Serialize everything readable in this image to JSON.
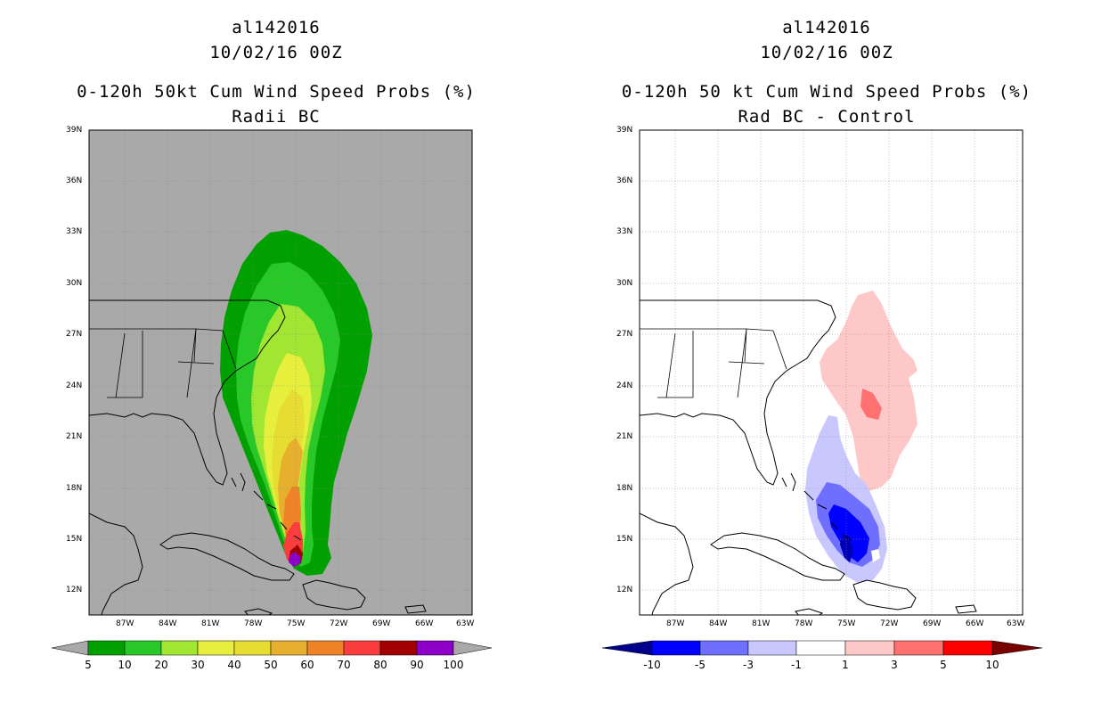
{
  "left_panel": {
    "line1": "al142016",
    "line2": "10/02/16 00Z",
    "line3": "0-120h 50kt Cum Wind Speed Probs (%)",
    "line4": "Radii BC"
  },
  "right_panel": {
    "line1": "al142016",
    "line2": "10/02/16 00Z",
    "line3": "0-120h 50 kt Cum Wind Speed Probs (%)",
    "line4": "Rad BC - Control"
  },
  "lat_labels": [
    "39N",
    "36N",
    "33N",
    "30N",
    "27N",
    "24N",
    "21N",
    "18N",
    "15N",
    "12N"
  ],
  "lon_labels": [
    "87W",
    "84W",
    "81W",
    "78W",
    "75W",
    "72W",
    "69W",
    "66W",
    "63W"
  ],
  "colors": {
    "land_bg": "#a9a9a9",
    "prob_5": "#00a000",
    "prob_10": "#28c828",
    "prob_20": "#a0e632",
    "prob_30": "#e6f03c",
    "prob_40": "#e6dc32",
    "prob_50": "#e6af2d",
    "prob_60": "#f08228",
    "prob_70": "#fa3c3c",
    "prob_80": "#a00000",
    "prob_90": "#8c00c8",
    "diff_m10": "#0000b4",
    "diff_m5": "#0000ff",
    "diff_m3": "#6e6eff",
    "diff_m1": "#c8c8ff",
    "diff_p1": "#ffc8c8",
    "diff_p3": "#ff7070",
    "diff_p5": "#ff0000",
    "diff_p10": "#780000"
  },
  "colorbar_left": {
    "labels": [
      "5",
      "10",
      "20",
      "30",
      "40",
      "50",
      "60",
      "70",
      "80",
      "90",
      "100"
    ]
  },
  "colorbar_right": {
    "labels": [
      "-10",
      "-5",
      "-3",
      "-1",
      "1",
      "3",
      "5",
      "10"
    ]
  }
}
